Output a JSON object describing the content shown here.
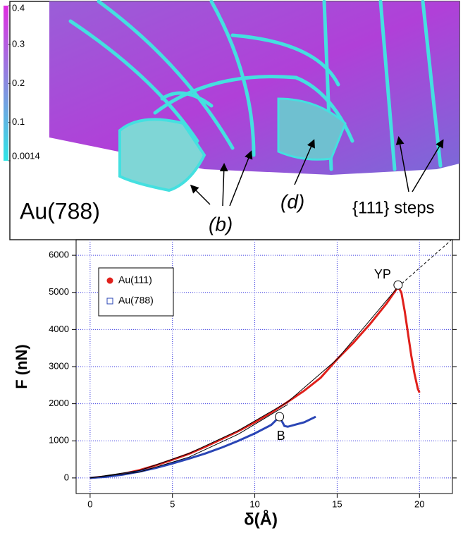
{
  "image_panel": {
    "colorbar": {
      "lim": [
        0.0014,
        0.4
      ],
      "ticks": [
        0.4,
        0.3,
        0.2,
        0.1,
        0.0014
      ]
    },
    "labels": {
      "sample": "Au(788)",
      "b": "(b)",
      "d": "(d)",
      "steps": "{111} steps"
    }
  },
  "chart_data": {
    "type": "line",
    "xlabel": "δ(Å)",
    "ylabel": "F (nN)",
    "xlim": [
      -0.85,
      22
    ],
    "ylim": [
      -420,
      6420
    ],
    "xticks": [
      0,
      5,
      10,
      15,
      20
    ],
    "yticks": [
      0,
      1000,
      2000,
      3000,
      4000,
      5000,
      6000
    ],
    "grid": true,
    "legend": "upper left",
    "series": [
      {
        "name": "Au(111)",
        "color": "#e0201b",
        "marker": "circle",
        "x": [
          0,
          1,
          2,
          3,
          4,
          5,
          6,
          7,
          8,
          9,
          10,
          11,
          12,
          13,
          14,
          15,
          16,
          17,
          18,
          18.7,
          18.9,
          19.1,
          19.3,
          19.5,
          19.7,
          19.9,
          20
        ],
        "values": [
          0,
          40,
          110,
          210,
          340,
          490,
          650,
          840,
          1050,
          1260,
          1500,
          1760,
          2050,
          2350,
          2700,
          3200,
          3650,
          4150,
          4700,
          5150,
          5000,
          4500,
          3900,
          3300,
          2800,
          2400,
          2300
        ]
      },
      {
        "name": "Au(788)",
        "color": "#2a45b5",
        "marker": "square",
        "x": [
          0,
          1,
          2,
          3,
          4,
          5,
          6,
          7,
          8,
          9,
          10,
          11,
          11.5,
          11.8,
          12,
          12.5,
          13,
          13.7
        ],
        "values": [
          0,
          30,
          90,
          170,
          270,
          390,
          520,
          660,
          820,
          1000,
          1200,
          1430,
          1650,
          1400,
          1380,
          1440,
          1500,
          1650
        ]
      },
      {
        "color": "#000000",
        "dash": false,
        "x": [
          0,
          3,
          6,
          9,
          12,
          15,
          18.7
        ],
        "values": [
          0,
          200,
          660,
          1280,
          2050,
          3200,
          5150
        ]
      },
      {
        "color": "#000000",
        "dash": true,
        "x": [
          18.7,
          21.9
        ],
        "values": [
          5150,
          6400
        ]
      },
      {
        "color": "#000000",
        "dash": false,
        "x": [
          0,
          3,
          6,
          9,
          12
        ],
        "values": [
          0,
          160,
          560,
          1180,
          1980
        ]
      }
    ],
    "annotations": [
      {
        "text": "YP",
        "x": 18.7,
        "y": 5200
      },
      {
        "text": "B",
        "x": 11.5,
        "y": 1650
      }
    ]
  }
}
